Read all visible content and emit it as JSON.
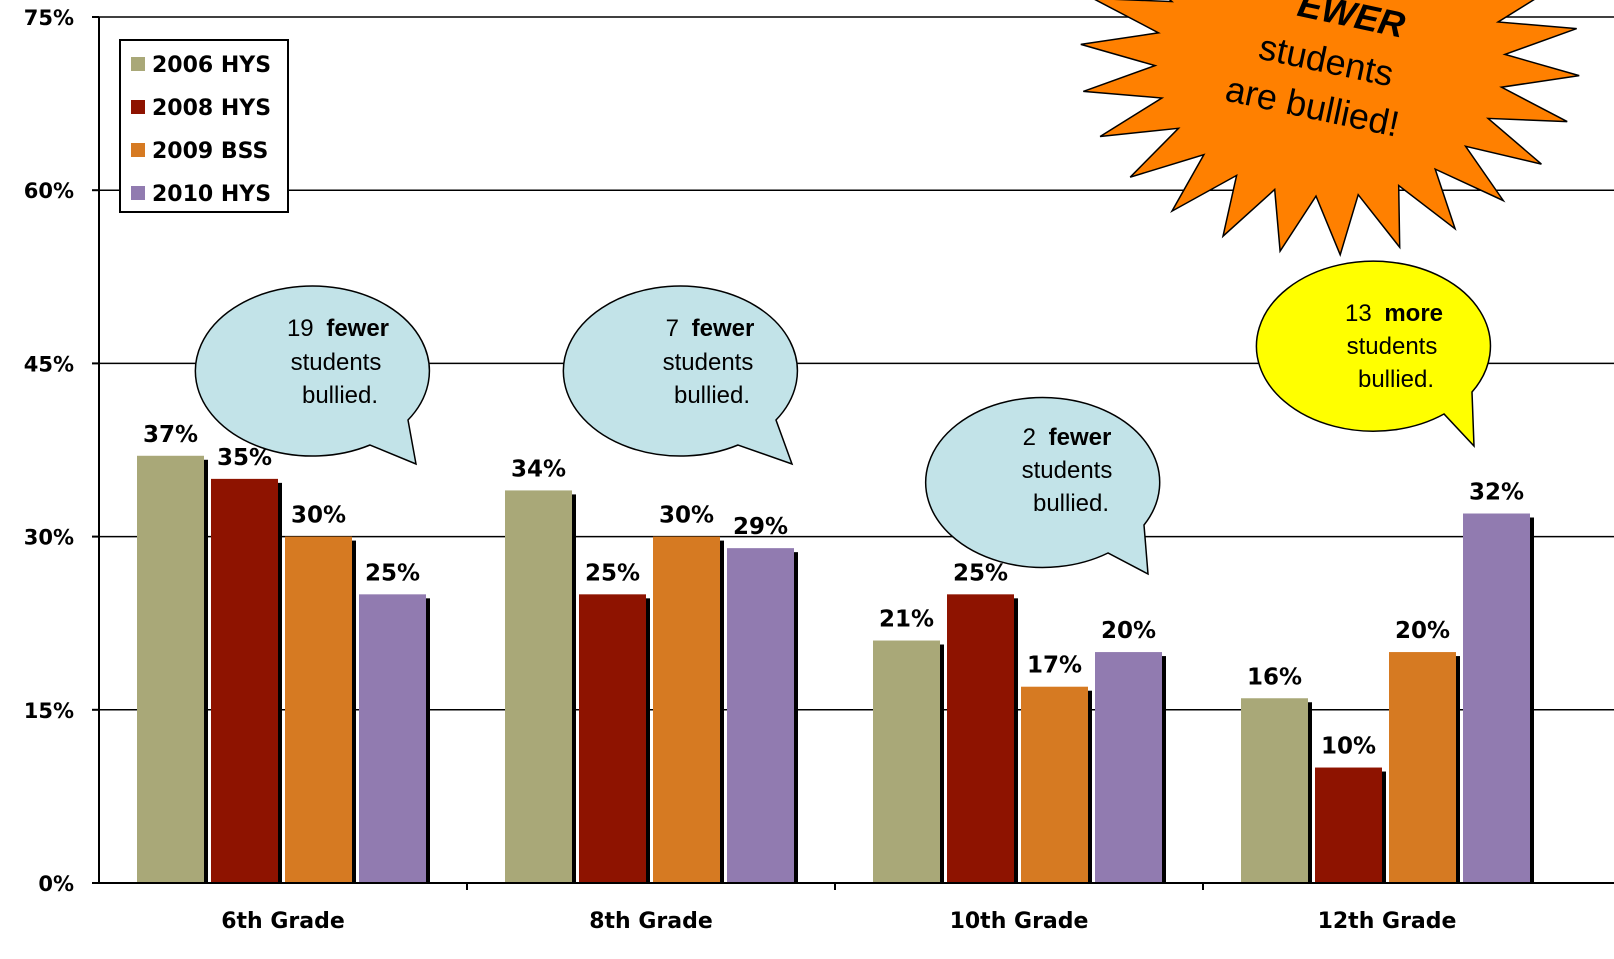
{
  "chart_data": {
    "type": "bar",
    "categories": [
      "6th Grade",
      "8th Grade",
      "10th Grade",
      "12th Grade"
    ],
    "series": [
      {
        "name": "2006 HYS",
        "color": "#A9A878",
        "values": [
          37,
          34,
          21,
          16
        ],
        "labels": [
          "37%",
          "34%",
          "21%",
          "16%"
        ]
      },
      {
        "name": "2008 HYS",
        "color": "#8E1300",
        "values": [
          35,
          25,
          25,
          10
        ],
        "labels": [
          "35%",
          "25%",
          "25%",
          "10%"
        ]
      },
      {
        "name": "2009 BSS",
        "color": "#D67A22",
        "values": [
          30,
          30,
          17,
          20
        ],
        "labels": [
          "30%",
          "30%",
          "17%",
          "20%"
        ]
      },
      {
        "name": "2010 HYS",
        "color": "#917BB0",
        "values": [
          25,
          29,
          20,
          32
        ],
        "labels": [
          "25%",
          "29%",
          "20%",
          "32%"
        ]
      }
    ],
    "ylim": [
      0,
      75
    ],
    "yticks": [
      0,
      15,
      30,
      45,
      60,
      75
    ],
    "ytick_labels": [
      "0%",
      "15%",
      "30%",
      "45%",
      "60%",
      "75%"
    ],
    "xlabel": "",
    "ylabel": "",
    "grid": true,
    "legend_position": "top-left"
  },
  "callouts": [
    {
      "number": "19",
      "word": "fewer",
      "rest1": "students",
      "rest2": "bullied.",
      "color": "#C2E3E8"
    },
    {
      "number": "7",
      "word": "fewer",
      "rest1": "students",
      "rest2": "bullied.",
      "color": "#C2E3E8"
    },
    {
      "number": "2",
      "word": "fewer",
      "rest1": "students",
      "rest2": "bullied.",
      "color": "#C2E3E8"
    },
    {
      "number": "13",
      "word": "more",
      "rest1": "students",
      "rest2": "bullied.",
      "color": "#FFFF00"
    }
  ],
  "burst": {
    "line1": "EWER",
    "line2": "students",
    "line3": "are bullied!",
    "color": "#FF8000"
  }
}
